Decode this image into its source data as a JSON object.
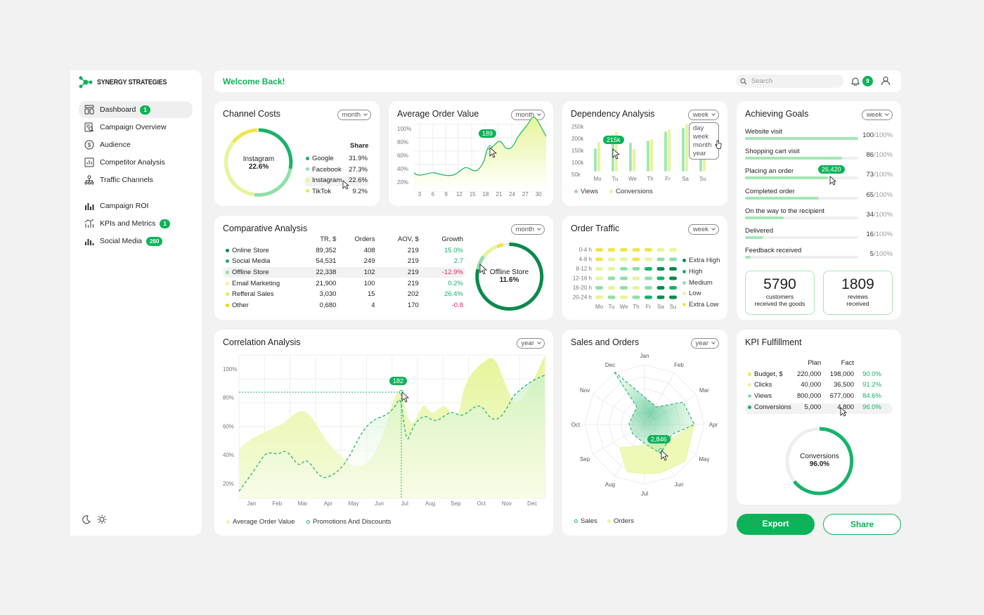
{
  "brand": {
    "name": "SYNERGY STRATEGIES"
  },
  "sidebar": {
    "items": [
      {
        "label": "Dashboard",
        "badge": "1",
        "icon": "dashboard-icon"
      },
      {
        "label": "Campaign Overview",
        "icon": "campaign-icon"
      },
      {
        "label": "Audience",
        "icon": "audience-icon"
      },
      {
        "label": "Competitor Analysis",
        "icon": "competitor-icon"
      },
      {
        "label": "Traffic Channels",
        "icon": "traffic-icon"
      },
      {
        "label": "Campaign ROI",
        "icon": "roi-icon"
      },
      {
        "label": "KPIs and Metrics",
        "badge": "1",
        "icon": "kpi-icon"
      },
      {
        "label": "Social Media",
        "badge": "260",
        "icon": "social-icon"
      }
    ]
  },
  "header": {
    "welcome": "Welcome Back!",
    "search_placeholder": "Search",
    "notifications": "9"
  },
  "channel_costs": {
    "title": "Channel Costs",
    "period": "month",
    "center_label": "Instagram",
    "center_value": "22.6%",
    "share_label": "Share",
    "rows": [
      {
        "name": "Google",
        "value": "31.9%",
        "color": "#17b26a"
      },
      {
        "name": "Facebook",
        "value": "27.3%",
        "color": "#8fe0a6"
      },
      {
        "name": "Instagram",
        "value": "22.6%",
        "color": "#e6f59a"
      },
      {
        "name": "TikTok",
        "value": "9.2%",
        "color": "#f0e64a"
      }
    ]
  },
  "avg_order": {
    "title": "Average Order Value",
    "period": "month",
    "tooltip": "189",
    "y_ticks": [
      "100%",
      "80%",
      "60%",
      "40%",
      "20%"
    ],
    "x_ticks": [
      "3",
      "6",
      "9",
      "12",
      "15",
      "18",
      "21",
      "24",
      "27",
      "30"
    ]
  },
  "dependency": {
    "title": "Dependency Analysis",
    "period": "week",
    "tooltip": "215k",
    "y_ticks": [
      "250k",
      "200k",
      "150k",
      "100k",
      "50k"
    ],
    "days": [
      "Mo",
      "Tu",
      "We",
      "Th",
      "Fr",
      "Sa",
      "Su"
    ],
    "menu": [
      "day",
      "week",
      "month",
      "year"
    ],
    "legend": [
      "Views",
      "Conversions"
    ]
  },
  "goals": {
    "title": "Achieving Goals",
    "period": "week",
    "items": [
      {
        "label": "Website visit",
        "value": "100",
        "pct": 1.0
      },
      {
        "label": "Shopping cart visit",
        "value": "86",
        "pct": 0.86
      },
      {
        "label": "Placing an order",
        "value": "73",
        "pct": 0.73
      },
      {
        "label": "Completed order",
        "value": "65",
        "pct": 0.65
      },
      {
        "label": "On the way to the recipient",
        "value": "34",
        "pct": 0.34
      },
      {
        "label": "Delivered",
        "value": "16",
        "pct": 0.16
      },
      {
        "label": "Feedback received",
        "value": "5",
        "pct": 0.05
      }
    ],
    "suffix": "/100%",
    "tooltip": "26,420",
    "stat1": {
      "value": "5790",
      "line1": "customers",
      "line2": "received the goods"
    },
    "stat2": {
      "value": "1809",
      "line1": "reviews",
      "line2": "received"
    }
  },
  "comparative": {
    "title": "Comparative Analysis",
    "period": "month",
    "headers": [
      "TR, $",
      "Orders",
      "AOV, $",
      "Growth"
    ],
    "rows": [
      {
        "name": "Online Store",
        "tr": "89,352",
        "orders": "408",
        "aov": "219",
        "growth": "15.0%",
        "color": "#0a8a4a",
        "gcolor": "#17b26a"
      },
      {
        "name": "Social Media",
        "tr": "54,531",
        "orders": "249",
        "aov": "219",
        "growth": "2.7",
        "color": "#17b26a",
        "gcolor": "#17b26a"
      },
      {
        "name": "Offline Store",
        "tr": "22,338",
        "orders": "102",
        "aov": "219",
        "growth": "-12.9%",
        "color": "#8fe0a6",
        "gcolor": "#e0245e"
      },
      {
        "name": "Email Marketing",
        "tr": "21,900",
        "orders": "100",
        "aov": "219",
        "growth": "0.2%",
        "color": "#e6f59a",
        "gcolor": "#17b26a"
      },
      {
        "name": "Refferal Sales",
        "tr": "3,030",
        "orders": "15",
        "aov": "202",
        "growth": "26.4%",
        "color": "#f0e64a",
        "gcolor": "#17b26a"
      },
      {
        "name": "Other",
        "tr": "0,680",
        "orders": "4",
        "aov": "170",
        "growth": "-0.8",
        "color": "#f5d000",
        "gcolor": "#e0245e"
      }
    ],
    "center_label": "Offline Store",
    "center_value": "11.6%"
  },
  "traffic": {
    "title": "Order Traffic",
    "period": "week",
    "rows": [
      "0-4 h",
      "4-8 h",
      "8-12 h",
      "12-16 h",
      "16-20 h",
      "20-24 h"
    ],
    "days": [
      "Mo",
      "Tu",
      "We",
      "Th",
      "Fr",
      "Sa",
      "Su"
    ],
    "legend": [
      {
        "label": "Extra High",
        "color": "#0a8a4a"
      },
      {
        "label": "High",
        "color": "#17b26a"
      },
      {
        "label": "Medium",
        "color": "#8fe0a6"
      },
      {
        "label": "Low",
        "color": "#e6f59a"
      },
      {
        "label": "Extra Low",
        "color": "#f0e64a"
      }
    ]
  },
  "correlation": {
    "title": "Correlation Analysis",
    "period": "year",
    "tooltip": "182",
    "y_ticks": [
      "100%",
      "80%",
      "60%",
      "40%",
      "20%"
    ],
    "months": [
      "Jan",
      "Feb",
      "Mar",
      "Apr",
      "May",
      "Jun",
      "Jul",
      "Aug",
      "Sep",
      "Oct",
      "Nov",
      "Dec"
    ],
    "legend": [
      "Average Order Value",
      "Promotions And Discounts"
    ]
  },
  "sales_orders": {
    "title": "Sales and Orders",
    "period": "year",
    "tooltip": "2,846",
    "months": [
      "Jan",
      "Feb",
      "Mar",
      "Apr",
      "May",
      "Jun",
      "Jul",
      "Aug",
      "Sep",
      "Oct",
      "Nov",
      "Dec"
    ],
    "legend": [
      "Sales",
      "Orders"
    ]
  },
  "kpi": {
    "title": "KPI Fulfillment",
    "headers": [
      "Plan",
      "Fact"
    ],
    "rows": [
      {
        "name": "Budget, $",
        "plan": "220,000",
        "fact": "198,000",
        "pct": "90.0%",
        "color": "#f0e64a"
      },
      {
        "name": "Clicks",
        "plan": "40,000",
        "fact": "36,500",
        "pct": "91.2%",
        "color": "#e6f59a"
      },
      {
        "name": "Views",
        "plan": "800,000",
        "fact": "677,000",
        "pct": "84.6%",
        "color": "#8fe0a6"
      },
      {
        "name": "Conversions",
        "plan": "5,000",
        "fact": "4,800",
        "pct": "96.0%",
        "color": "#17b26a"
      }
    ],
    "center_label": "Conversions",
    "center_value": "96.0%"
  },
  "actions": {
    "export": "Export",
    "share": "Share"
  }
}
